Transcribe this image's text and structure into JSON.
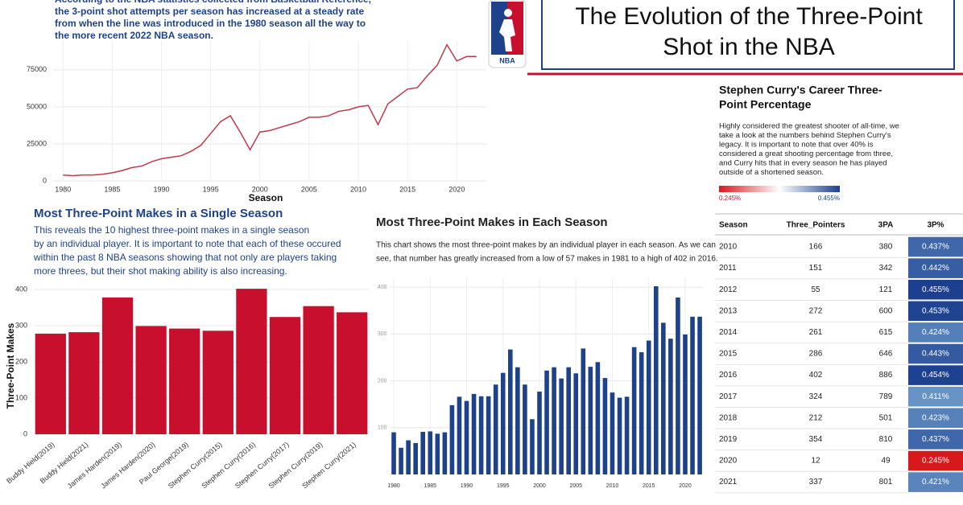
{
  "header": {
    "title_lines": [
      "The Evolution of the Three-Point",
      "Shot in the NBA"
    ],
    "logo_text": "NBA"
  },
  "chart_data": [
    {
      "type": "line",
      "subtitle": [
        "According to the NBA statistics collected from Basketball Reference,",
        "the 3-point shot attempts per season has increased at a steady rate",
        "from when the line was introduced in the 1980 season all the way to",
        "the more recent 2022 NBA season."
      ],
      "x_label": "Season",
      "x": [
        1980,
        1981,
        1982,
        1983,
        1984,
        1985,
        1986,
        1987,
        1988,
        1989,
        1990,
        1991,
        1992,
        1993,
        1994,
        1995,
        1996,
        1997,
        1998,
        1999,
        2000,
        2001,
        2002,
        2003,
        2004,
        2005,
        2006,
        2007,
        2008,
        2009,
        2010,
        2011,
        2012,
        2013,
        2014,
        2015,
        2016,
        2017,
        2018,
        2019,
        2020,
        2021,
        2022
      ],
      "values": [
        4000,
        3500,
        4000,
        4000,
        4500,
        5500,
        7000,
        9000,
        10000,
        13000,
        15000,
        16000,
        17000,
        20000,
        24000,
        32000,
        40000,
        44000,
        33000,
        21000,
        33000,
        34000,
        36000,
        38000,
        40000,
        43000,
        43000,
        44000,
        47000,
        48000,
        50000,
        51000,
        38000,
        52000,
        57000,
        62000,
        63000,
        71000,
        78000,
        92000,
        81000,
        84000,
        84000
      ],
      "color": "#c0394b",
      "xlim": [
        1979,
        2023
      ],
      "xticks": [
        1980,
        1985,
        1990,
        1995,
        2000,
        2005,
        2010,
        2015,
        2020
      ],
      "ylim": [
        0,
        95000
      ],
      "yticks": [
        0,
        25000,
        50000,
        75000
      ],
      "grid": true
    },
    {
      "type": "bar",
      "title": "Most Three-Point Makes in a Single Season",
      "subtitle": [
        "This reveals the 10 highest three-point makes in a single season",
        "by an individual player. It is important to note that each of these occured",
        "within the past 8 NBA seasons showing that not only are players taking",
        "more threes, but their shot making ability is also increasing."
      ],
      "y_label": "Three-Point Makes",
      "categories": [
        "Buddy Hield(2019)",
        "Buddy Hield(2021)",
        "James Harden(2019)",
        "James Harden(2020)",
        "Paul George(2019)",
        "Stephen Curry(2015)",
        "Stephen Curry(2016)",
        "Stephen Curry(2017)",
        "Stephen Curry(2019)",
        "Stephen Curry(2021)"
      ],
      "values": [
        278,
        282,
        378,
        299,
        292,
        286,
        402,
        324,
        354,
        337
      ],
      "color": "#c8102e",
      "ylim": [
        0,
        420
      ],
      "yticks": [
        0,
        100,
        200,
        300,
        400
      ],
      "grid": true
    },
    {
      "type": "bar",
      "title": "Most Three-Point Makes in Each Season",
      "subtitle": [
        "This chart shows the most three-point makes by an individual player in each season. As we can",
        "see, that number has greatly increased from a low of 57 makes in 1981 to a high of 402 in 2016."
      ],
      "x": [
        1980,
        1981,
        1982,
        1983,
        1984,
        1985,
        1986,
        1987,
        1988,
        1989,
        1990,
        1991,
        1992,
        1993,
        1994,
        1995,
        1996,
        1997,
        1998,
        1999,
        2000,
        2001,
        2002,
        2003,
        2004,
        2005,
        2006,
        2007,
        2008,
        2009,
        2010,
        2011,
        2012,
        2013,
        2014,
        2015,
        2016,
        2017,
        2018,
        2019,
        2020,
        2021,
        2022
      ],
      "values": [
        90,
        57,
        73,
        67,
        91,
        92,
        87,
        90,
        148,
        166,
        157,
        172,
        167,
        167,
        192,
        217,
        267,
        229,
        192,
        118,
        177,
        222,
        229,
        205,
        229,
        216,
        269,
        230,
        240,
        206,
        175,
        164,
        166,
        272,
        261,
        286,
        402,
        324,
        290,
        378,
        299,
        337,
        337
      ],
      "color": "#1d428a",
      "xlim": [
        1979.5,
        2022.5
      ],
      "xticks": [
        1980,
        1985,
        1990,
        1995,
        2000,
        2005,
        2010,
        2015,
        2020
      ],
      "ylim": [
        0,
        420
      ],
      "yticks": [
        100,
        200,
        300,
        400
      ],
      "grid": true
    }
  ],
  "curry": {
    "title_lines": [
      "Stephen Curry's Career Three-",
      "Point Percentage"
    ],
    "text_lines": [
      "Highly considered the greatest shooter of all-time, we",
      "take a look at the numbers behind Stephen Curry's",
      "legacy. It is important to note that over 40% is",
      "considered a great shooting percentage from three,",
      "and Curry hits that in every season he has played",
      "outside of a shortened season."
    ],
    "legend": {
      "min": {
        "value": 0.245,
        "label": "0.245%"
      },
      "max": {
        "value": 0.455,
        "label": "0.455%"
      }
    },
    "table": {
      "columns": [
        "Season",
        "Three_Pointers",
        "3PA",
        "3P%"
      ],
      "rows": [
        [
          "2010",
          "166",
          "380",
          "0.437%"
        ],
        [
          "2011",
          "151",
          "342",
          "0.442%"
        ],
        [
          "2012",
          "55",
          "121",
          "0.455%"
        ],
        [
          "2013",
          "272",
          "600",
          "0.453%"
        ],
        [
          "2014",
          "261",
          "615",
          "0.424%"
        ],
        [
          "2015",
          "286",
          "646",
          "0.443%"
        ],
        [
          "2016",
          "402",
          "886",
          "0.454%"
        ],
        [
          "2017",
          "324",
          "789",
          "0.411%"
        ],
        [
          "2018",
          "212",
          "501",
          "0.423%"
        ],
        [
          "2019",
          "354",
          "810",
          "0.437%"
        ],
        [
          "2020",
          "12",
          "49",
          "0.245%"
        ],
        [
          "2021",
          "337",
          "801",
          "0.421%"
        ]
      ]
    }
  }
}
